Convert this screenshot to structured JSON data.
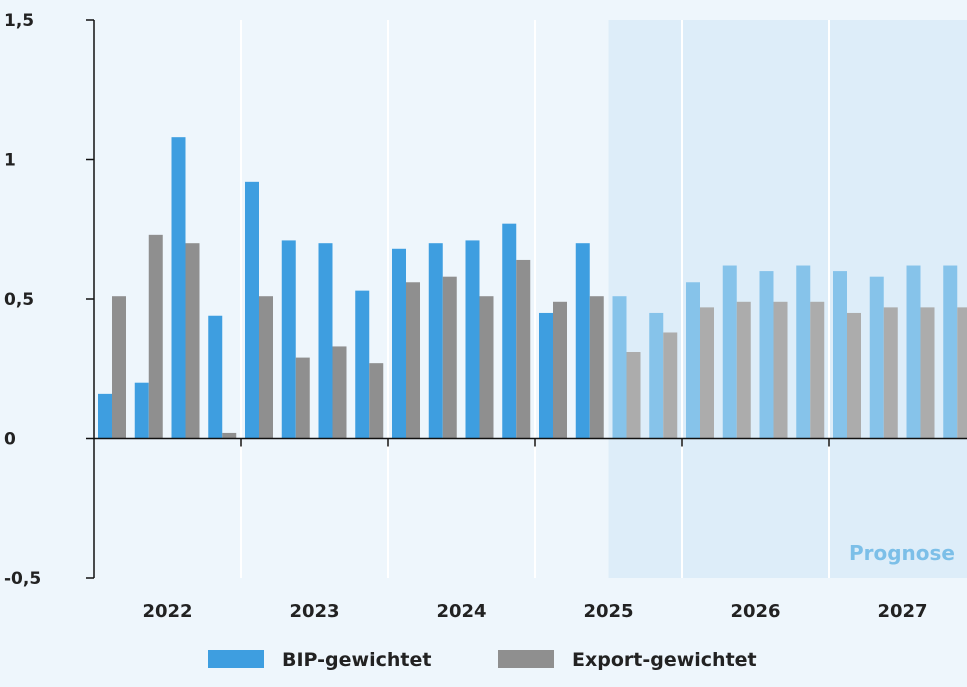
{
  "chart_data": {
    "type": "bar",
    "title": "",
    "xlabel": "",
    "ylabel": "",
    "ylim": [
      -0.5,
      1.5
    ],
    "yticks": [
      {
        "value": -0.5,
        "label": "-0,5"
      },
      {
        "value": 0,
        "label": "0"
      },
      {
        "value": 0.5,
        "label": "0,5"
      },
      {
        "value": 1,
        "label": "1"
      },
      {
        "value": 1.5,
        "label": "1,5"
      }
    ],
    "years": [
      "2022",
      "2023",
      "2024",
      "2025",
      "2026",
      "2027"
    ],
    "quarters_per_year": 4,
    "forecast_start_index": 14,
    "forecast_label": "Prognose",
    "series": [
      {
        "name": "BIP-gewichtet",
        "color": "#3e9ee0",
        "forecast_color": "#86c3ea",
        "values": [
          0.16,
          0.2,
          1.08,
          0.44,
          0.92,
          0.71,
          0.7,
          0.53,
          0.68,
          0.7,
          0.71,
          0.77,
          0.45,
          0.7,
          0.51,
          0.45,
          0.56,
          0.62,
          0.6,
          0.62,
          0.6,
          0.58,
          0.62,
          0.62
        ]
      },
      {
        "name": "Export-gewichtet",
        "color": "#8f8f8f",
        "forecast_color": "#acacac",
        "values": [
          0.51,
          0.73,
          0.7,
          0.02,
          0.51,
          0.29,
          0.33,
          0.27,
          0.56,
          0.58,
          0.51,
          0.64,
          0.49,
          0.51,
          0.31,
          0.38,
          0.47,
          0.49,
          0.49,
          0.49,
          0.45,
          0.47,
          0.47,
          0.47
        ]
      }
    ],
    "legend_position": "bottom-center",
    "grid": false
  },
  "colors": {
    "background": "#eef6fc",
    "forecast_band": "#ddedf9",
    "axis": "#111111",
    "separator": "#ffffff"
  }
}
